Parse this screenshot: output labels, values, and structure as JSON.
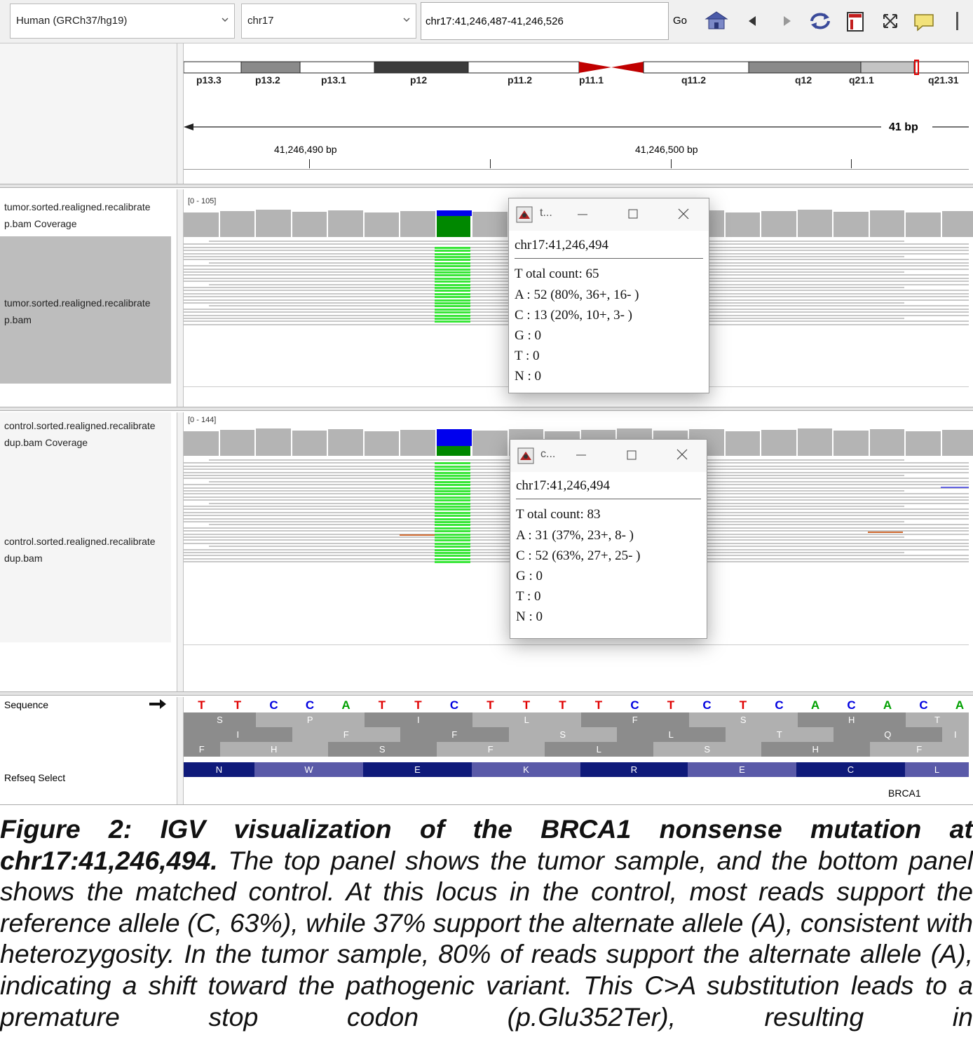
{
  "toolbar": {
    "genome": "Human (GRCh37/hg19)",
    "chromosome": "chr17",
    "locus": "chr17:41,246,487-41,246,526",
    "go_label": "Go"
  },
  "ideogram": {
    "bands": [
      "p13.3",
      "p13.2",
      "p13.1",
      "p12",
      "p11.2",
      "p11.1",
      "q11.2",
      "q12",
      "q21.1",
      "q21.31"
    ]
  },
  "ruler": {
    "span_label": "41 bp",
    "tick_left": "41,246,490 bp",
    "tick_right": "41,246,500 bp"
  },
  "tumor": {
    "coverage_name_1": "tumor.sorted.realigned.recalibrate",
    "coverage_name_2": "p.bam Coverage",
    "bam_name_1": "tumor.sorted.realigned.recalibrate",
    "bam_name_2": "p.bam",
    "range": "[0 - 105]"
  },
  "control": {
    "coverage_name_1": "control.sorted.realigned.recalibratе",
    "coverage_name_2": "dup.bam Coverage",
    "bam_name_1": "control.sorted.realigned.recalibratе",
    "bam_name_2": "dup.bam",
    "range": "[0 - 144]"
  },
  "popup_tumor": {
    "title": "t...",
    "locus": "chr17:41,246,494",
    "total": "T otal count: 65",
    "a": "A : 52 (80%, 36+, 16- )",
    "c": "C : 13 (20%, 10+, 3- )",
    "g": "G : 0",
    "t": "T  : 0",
    "n": "N : 0"
  },
  "popup_control": {
    "title": "c...",
    "locus": "chr17:41,246,494",
    "total": "T otal count: 83",
    "a": "A : 31 (37%, 23+, 8- )",
    "c": "C : 52 (63%, 27+, 25- )",
    "g": "G : 0",
    "t": "T  : 0",
    "n": "N : 0"
  },
  "sequence": {
    "label": "Sequence",
    "bases": [
      "T",
      "T",
      "C",
      "C",
      "A",
      "T",
      "T",
      "C",
      "T",
      "T",
      "T",
      "T",
      "C",
      "T",
      "C",
      "T",
      "C",
      "A",
      "C",
      "A",
      "C",
      "A"
    ],
    "frame1": [
      "S",
      "P",
      "I",
      "L",
      "F",
      "S",
      "H",
      "T"
    ],
    "frame2": [
      "I",
      "F",
      "F",
      "S",
      "L",
      "T",
      "Q"
    ],
    "frame3": [
      "F",
      "H",
      "S",
      "F",
      "L",
      "S",
      "H"
    ],
    "colors": {
      "A": "#00a000",
      "C": "#0000e0",
      "G": "#d17105",
      "T": "#e00000"
    }
  },
  "refseq": {
    "label": "Refseq Select",
    "exon_aas": [
      "N",
      "W",
      "E",
      "K",
      "R",
      "E",
      "C",
      "L"
    ],
    "gene": "BRCA1"
  },
  "caption": {
    "bold": "Figure 2: IGV visualization of the BRCA1 nonsense mutation at chr17:41,246,494.",
    "text": " The top panel shows the tumor sample, and the bottom panel shows the matched control. At this locus in the control, most reads support the reference allele (C, 63%), while 37% support the alternate allele (A), consistent with heterozygosity. In the tumor sample, 80% of reads support the alternate allele (A), indicating a shift toward the pathogenic variant. This C>A substitution leads to a premature stop codon (p.Glu352Ter), resulting in"
  }
}
